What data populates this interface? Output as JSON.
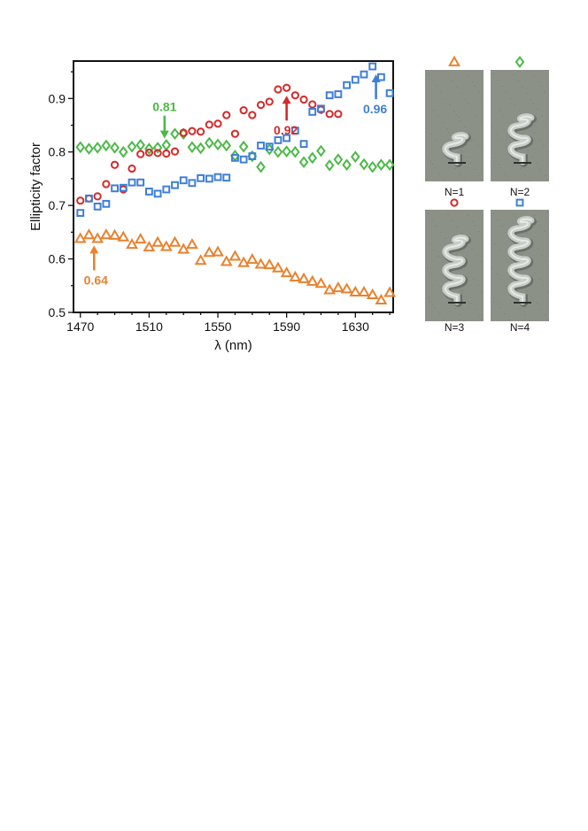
{
  "chart_data": {
    "type": "scatter",
    "title": "",
    "xlabel": "λ (nm)",
    "ylabel": "Ellipticity factor",
    "xlim": [
      1466,
      1652
    ],
    "ylim": [
      0.5,
      0.97
    ],
    "xticks": [
      1470,
      1510,
      1550,
      1590,
      1630
    ],
    "yticks": [
      0.5,
      0.6,
      0.7,
      0.8,
      0.9
    ],
    "ytick_labels": [
      "0.5",
      "0.6",
      "0.7",
      "0.8",
      "0.9"
    ],
    "series": [
      {
        "name": "N=1",
        "marker": "triangle",
        "color": "#e8822e",
        "x": [
          1470,
          1475,
          1480,
          1485,
          1490,
          1495,
          1500,
          1505,
          1510,
          1515,
          1520,
          1525,
          1530,
          1535,
          1540,
          1545,
          1550,
          1555,
          1560,
          1565,
          1570,
          1575,
          1580,
          1585,
          1590,
          1595,
          1600,
          1605,
          1610,
          1615,
          1620,
          1625,
          1630,
          1635,
          1640,
          1645,
          1650
        ],
        "y": [
          0.638,
          0.645,
          0.638,
          0.645,
          0.644,
          0.641,
          0.627,
          0.637,
          0.622,
          0.631,
          0.623,
          0.631,
          0.618,
          0.627,
          0.597,
          0.612,
          0.613,
          0.595,
          0.605,
          0.593,
          0.599,
          0.59,
          0.589,
          0.583,
          0.574,
          0.566,
          0.563,
          0.558,
          0.554,
          0.542,
          0.546,
          0.544,
          0.538,
          0.538,
          0.533,
          0.523,
          0.537
        ]
      },
      {
        "name": "N=2",
        "marker": "diamond",
        "color": "#4db848",
        "x": [
          1470,
          1475,
          1480,
          1485,
          1490,
          1495,
          1500,
          1505,
          1510,
          1515,
          1520,
          1525,
          1530,
          1535,
          1540,
          1545,
          1550,
          1555,
          1560,
          1565,
          1570,
          1575,
          1580,
          1585,
          1590,
          1595,
          1600,
          1605,
          1610,
          1615,
          1620,
          1625,
          1630,
          1635,
          1640,
          1645,
          1650
        ],
        "y": [
          0.809,
          0.806,
          0.808,
          0.812,
          0.808,
          0.8,
          0.81,
          0.813,
          0.806,
          0.808,
          0.813,
          0.834,
          0.834,
          0.809,
          0.807,
          0.817,
          0.814,
          0.812,
          0.793,
          0.81,
          0.792,
          0.772,
          0.805,
          0.8,
          0.801,
          0.8,
          0.781,
          0.789,
          0.802,
          0.775,
          0.786,
          0.776,
          0.791,
          0.777,
          0.772,
          0.776,
          0.776
        ]
      },
      {
        "name": "N=3",
        "marker": "circle",
        "color": "#d42a2a",
        "x": [
          1470,
          1475,
          1480,
          1485,
          1490,
          1495,
          1500,
          1505,
          1510,
          1515,
          1520,
          1525,
          1530,
          1535,
          1540,
          1545,
          1550,
          1555,
          1560,
          1565,
          1570,
          1575,
          1580,
          1585,
          1590,
          1595,
          1600,
          1605,
          1610,
          1615,
          1620
        ],
        "y": [
          0.709,
          0.713,
          0.717,
          0.74,
          0.776,
          0.73,
          0.769,
          0.796,
          0.799,
          0.798,
          0.797,
          0.801,
          0.836,
          0.839,
          0.838,
          0.851,
          0.853,
          0.869,
          0.834,
          0.878,
          0.869,
          0.888,
          0.894,
          0.917,
          0.92,
          0.906,
          0.898,
          0.889,
          0.879,
          0.871,
          0.871
        ]
      },
      {
        "name": "N=4",
        "marker": "square",
        "color": "#3f7fd6",
        "x": [
          1470,
          1475,
          1480,
          1485,
          1490,
          1495,
          1500,
          1505,
          1510,
          1515,
          1520,
          1525,
          1530,
          1535,
          1540,
          1545,
          1550,
          1555,
          1560,
          1565,
          1570,
          1575,
          1580,
          1585,
          1590,
          1595,
          1600,
          1605,
          1610,
          1615,
          1620,
          1625,
          1630,
          1635,
          1640,
          1645,
          1650
        ],
        "y": [
          0.686,
          0.713,
          0.698,
          0.703,
          0.732,
          0.733,
          0.743,
          0.743,
          0.726,
          0.722,
          0.73,
          0.738,
          0.747,
          0.742,
          0.751,
          0.75,
          0.753,
          0.752,
          0.789,
          0.786,
          0.792,
          0.812,
          0.81,
          0.822,
          0.826,
          0.84,
          0.815,
          0.875,
          0.881,
          0.906,
          0.908,
          0.925,
          0.935,
          0.945,
          0.96,
          0.94,
          0.91
        ]
      }
    ],
    "annotations": [
      {
        "label": "0.81",
        "x": 1519,
        "y": 0.81,
        "color": "#4db848",
        "direction": "down"
      },
      {
        "label": "0.92",
        "x": 1590,
        "y": 0.92,
        "color": "#d42a2a",
        "direction": "up"
      },
      {
        "label": "0.96",
        "x": 1642,
        "y": 0.96,
        "color": "#3f7fd6",
        "direction": "up"
      },
      {
        "label": "0.64",
        "x": 1478,
        "y": 0.64,
        "color": "#e8822e",
        "direction": "up"
      }
    ]
  },
  "panels": [
    {
      "label": "N=1",
      "marker": "triangle",
      "color": "#e8822e",
      "turns": 1
    },
    {
      "label": "N=2",
      "marker": "diamond",
      "color": "#4db848",
      "turns": 2
    },
    {
      "label": "N=3",
      "marker": "circle",
      "color": "#d42a2a",
      "turns": 3
    },
    {
      "label": "N=4",
      "marker": "square",
      "color": "#3f7fd6",
      "turns": 4
    }
  ],
  "colors": {
    "panel_background": "#8c9188",
    "helix": "#c9cdc7"
  }
}
